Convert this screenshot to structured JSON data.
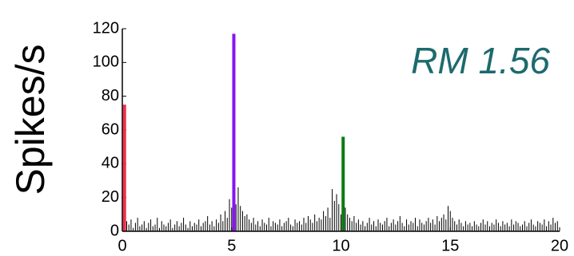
{
  "chart_data": {
    "type": "bar",
    "ylabel": "Spikes/s",
    "annotation": "RM 1.56",
    "xlim": [
      0,
      20
    ],
    "xticks": [
      0,
      5,
      10,
      15,
      20
    ],
    "ylim": [
      0,
      120
    ],
    "yticks": [
      0,
      20,
      40,
      60,
      80,
      100,
      120
    ],
    "series": [
      {
        "color": "#000000",
        "x": [
          0.1,
          0.2,
          0.3,
          0.4,
          0.5,
          0.6,
          0.7,
          0.8,
          0.9,
          1.0,
          1.1,
          1.2,
          1.3,
          1.4,
          1.5,
          1.6,
          1.7,
          1.8,
          1.9,
          2.0,
          2.1,
          2.2,
          2.3,
          2.4,
          2.5,
          2.6,
          2.7,
          2.8,
          2.9,
          3.0,
          3.1,
          3.2,
          3.3,
          3.4,
          3.5,
          3.6,
          3.7,
          3.8,
          3.9,
          4.0,
          4.1,
          4.2,
          4.3,
          4.4,
          4.5,
          4.6,
          4.7,
          4.8,
          4.9,
          5.0,
          5.1,
          5.2,
          5.3,
          5.4,
          5.5,
          5.6,
          5.7,
          5.8,
          5.9,
          6.0,
          6.1,
          6.2,
          6.3,
          6.4,
          6.5,
          6.6,
          6.7,
          6.8,
          6.9,
          7.0,
          7.1,
          7.2,
          7.3,
          7.4,
          7.5,
          7.6,
          7.7,
          7.8,
          7.9,
          8.0,
          8.1,
          8.2,
          8.3,
          8.4,
          8.5,
          8.6,
          8.7,
          8.8,
          8.9,
          9.0,
          9.1,
          9.2,
          9.3,
          9.4,
          9.5,
          9.6,
          9.7,
          9.8,
          9.9,
          10.0,
          10.1,
          10.2,
          10.3,
          10.4,
          10.5,
          10.6,
          10.7,
          10.8,
          10.9,
          11.0,
          11.1,
          11.2,
          11.3,
          11.4,
          11.5,
          11.6,
          11.7,
          11.8,
          11.9,
          12.0,
          12.1,
          12.2,
          12.3,
          12.4,
          12.5,
          12.6,
          12.7,
          12.8,
          12.9,
          13.0,
          13.1,
          13.2,
          13.3,
          13.4,
          13.5,
          13.6,
          13.7,
          13.8,
          13.9,
          14.0,
          14.1,
          14.2,
          14.3,
          14.4,
          14.5,
          14.6,
          14.7,
          14.8,
          14.9,
          15.0,
          15.1,
          15.2,
          15.3,
          15.4,
          15.5,
          15.6,
          15.7,
          15.8,
          15.9,
          16.0,
          16.1,
          16.2,
          16.3,
          16.4,
          16.5,
          16.6,
          16.7,
          16.8,
          16.9,
          17.0,
          17.1,
          17.2,
          17.3,
          17.4,
          17.5,
          17.6,
          17.7,
          17.8,
          17.9,
          18.0,
          18.1,
          18.2,
          18.3,
          18.4,
          18.5,
          18.6,
          18.7,
          18.8,
          18.9,
          19.0,
          19.1,
          19.2,
          19.3,
          19.4,
          19.5,
          19.6,
          19.7,
          19.8,
          19.9
        ],
        "values": [
          3,
          6,
          4,
          7,
          2,
          5,
          8,
          3,
          4,
          6,
          2,
          5,
          7,
          3,
          4,
          8,
          2,
          6,
          4,
          3,
          5,
          7,
          2,
          4,
          6,
          3,
          5,
          8,
          4,
          2,
          6,
          3,
          5,
          4,
          7,
          3,
          5,
          6,
          9,
          4,
          6,
          3,
          7,
          5,
          10,
          6,
          12,
          8,
          19,
          14,
          18,
          16,
          26,
          15,
          12,
          9,
          10,
          7,
          5,
          8,
          4,
          6,
          3,
          7,
          5,
          4,
          8,
          3,
          6,
          5,
          4,
          7,
          3,
          5,
          6,
          8,
          4,
          3,
          7,
          5,
          6,
          4,
          8,
          5,
          9,
          7,
          5,
          10,
          6,
          8,
          7,
          12,
          9,
          14,
          8,
          25,
          18,
          22,
          16,
          10,
          20,
          14,
          10,
          8,
          6,
          9,
          5,
          7,
          4,
          6,
          3,
          5,
          8,
          4,
          6,
          3,
          7,
          5,
          4,
          6,
          8,
          3,
          5,
          7,
          4,
          6,
          9,
          5,
          3,
          7,
          4,
          6,
          5,
          8,
          3,
          7,
          5,
          4,
          6,
          8,
          5,
          7,
          4,
          9,
          6,
          8,
          10,
          7,
          15,
          12,
          8,
          6,
          4,
          7,
          5,
          3,
          6,
          4,
          5,
          3,
          6,
          4,
          3,
          5,
          7,
          4,
          6,
          3,
          5,
          4,
          7,
          5,
          3,
          6,
          4,
          5,
          3,
          7,
          4,
          6,
          5,
          3,
          4,
          6,
          3,
          5,
          7,
          4,
          3,
          6,
          5,
          4,
          7,
          3,
          6,
          4,
          8,
          5,
          6
        ]
      },
      {
        "color": "#f0304a",
        "x": [
          0.1
        ],
        "values": [
          75
        ]
      },
      {
        "color": "#8a14f0",
        "x": [
          5.1
        ],
        "values": [
          117
        ]
      },
      {
        "color": "#0a7a14",
        "x": [
          10.1
        ],
        "values": [
          56
        ]
      }
    ]
  }
}
